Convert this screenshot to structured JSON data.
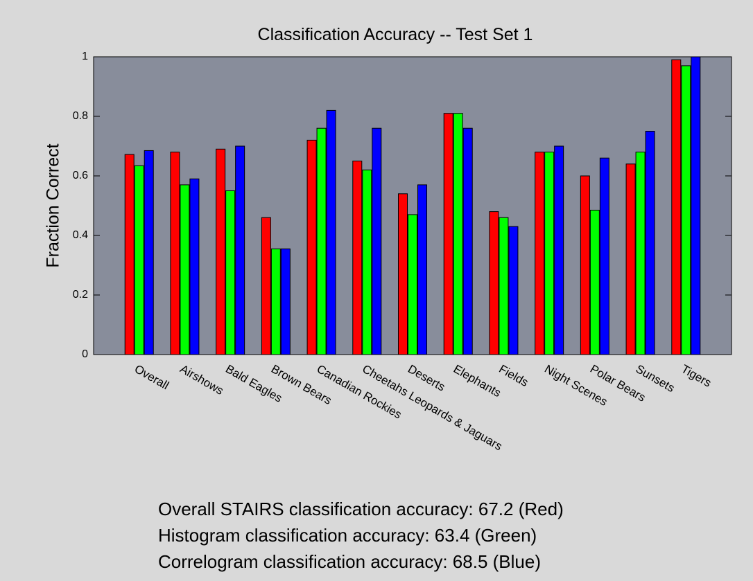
{
  "chart_data": {
    "type": "bar",
    "title": "Classification Accuracy -- Test Set 1",
    "y_label": "Fraction Correct",
    "categories": [
      "Overall",
      "Airshows",
      "Bald Eagles",
      "Brown Bears",
      "Canadian Rockies",
      "Cheetahs Leopards & Jaguars",
      "Deserts",
      "Elephants",
      "Fields",
      "Night Scenes",
      "Polar Bears",
      "Sunsets",
      "Tigers"
    ],
    "series": [
      {
        "color": "#ff0000",
        "values": [
          0.672,
          0.68,
          0.69,
          0.46,
          0.72,
          0.65,
          0.54,
          0.81,
          0.48,
          0.68,
          0.6,
          0.64,
          0.99
        ]
      },
      {
        "color": "#00ff00",
        "values": [
          0.634,
          0.57,
          0.55,
          0.355,
          0.76,
          0.62,
          0.47,
          0.81,
          0.46,
          0.68,
          0.485,
          0.68,
          0.97
        ]
      },
      {
        "color": "#0000ff",
        "values": [
          0.685,
          0.59,
          0.7,
          0.355,
          0.82,
          0.76,
          0.57,
          0.76,
          0.43,
          0.7,
          0.66,
          0.75,
          1.0
        ]
      }
    ],
    "ylim": [
      0,
      1
    ],
    "yticks": [
      0,
      0.2,
      0.4,
      0.6,
      0.8,
      1
    ],
    "annotations": [
      "Overall STAIRS classification accuracy:  67.2 (Red)",
      "Histogram classification accuracy:  63.4 (Green)",
      "Correlogram classification accuracy:  68.5 (Blue)"
    ]
  }
}
